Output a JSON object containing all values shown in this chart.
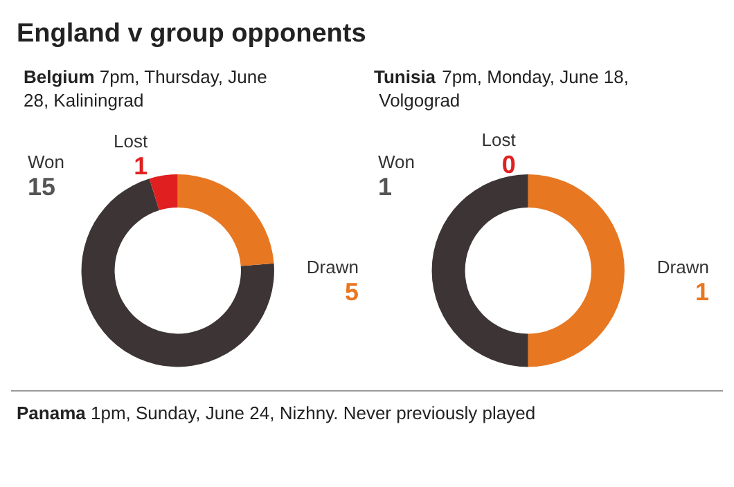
{
  "chart_data": [
    {
      "type": "other",
      "title": "England v group opponents",
      "annotations": [
        "Panama 1pm, Sunday, June 24, Nizhny. Never previously played"
      ]
    },
    {
      "type": "donut",
      "title": "Belgium 7pm, Thursday, June 28, Kaliningrad",
      "categories": [
        "Won",
        "Lost",
        "Drawn"
      ],
      "values": [
        15,
        1,
        5
      ],
      "colors": [
        "#3d3535",
        "#e02020",
        "#e87722"
      ],
      "value_labels": [
        "15",
        "1",
        "5"
      ]
    },
    {
      "type": "donut",
      "title": "Tunisia 7pm, Monday, June 18, Volgograd",
      "categories": [
        "Won",
        "Lost",
        "Drawn"
      ],
      "values": [
        1,
        0,
        1
      ],
      "colors": [
        "#3d3535",
        "#e02020",
        "#e87722"
      ],
      "value_labels": [
        "1",
        "0",
        "1"
      ]
    }
  ]
}
